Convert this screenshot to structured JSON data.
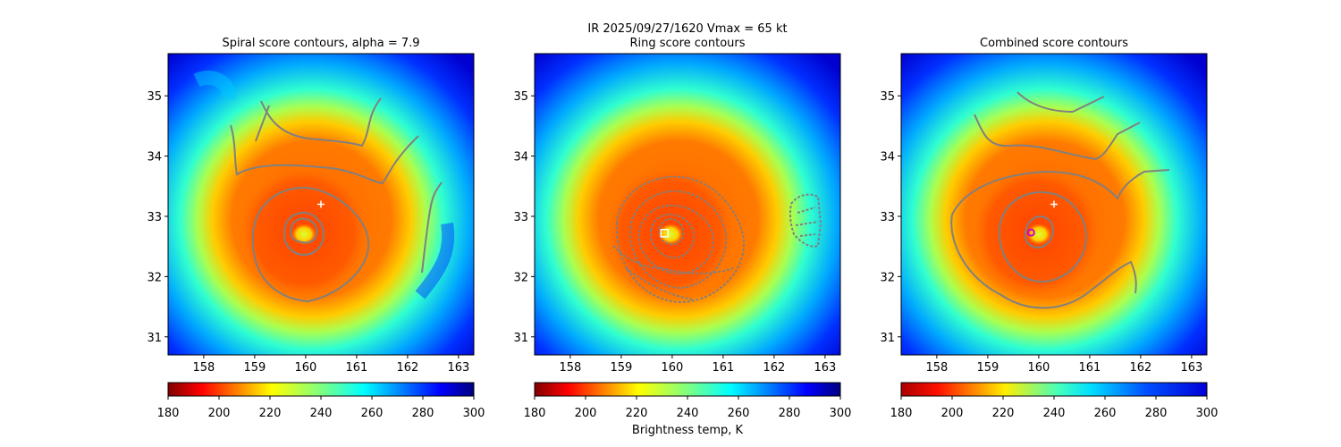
{
  "figure": {
    "suptitle_line1": "IR  2025/09/27/1620    Vmax = 65 kt",
    "colorbar_label": "Brightness temp, K"
  },
  "chart_data": [
    {
      "type": "heatmap",
      "title": "Spiral score contours, alpha =  7.9",
      "xlim": [
        157.3,
        163.3
      ],
      "ylim": [
        30.7,
        35.7
      ],
      "xticks": [
        158,
        159,
        160,
        161,
        162,
        163
      ],
      "yticks": [
        31,
        32,
        33,
        34,
        35
      ],
      "colorbar": {
        "min": 180,
        "max": 300,
        "ticks": [
          180,
          200,
          220,
          240,
          260,
          280,
          300
        ]
      },
      "markers": [
        {
          "kind": "plus",
          "lon": 160.3,
          "lat": 33.2,
          "color": "#ffffff"
        }
      ]
    },
    {
      "type": "heatmap",
      "title": "Ring score contours",
      "xlim": [
        157.3,
        163.3
      ],
      "ylim": [
        30.7,
        35.7
      ],
      "xticks": [
        158,
        159,
        160,
        161,
        162,
        163
      ],
      "yticks": [
        31,
        32,
        33,
        34,
        35
      ],
      "colorbar": {
        "min": 180,
        "max": 300,
        "ticks": [
          180,
          200,
          220,
          240,
          260,
          280,
          300
        ]
      },
      "markers": [
        {
          "kind": "square",
          "lon": 159.85,
          "lat": 32.72,
          "color": "#ffffff"
        }
      ]
    },
    {
      "type": "heatmap",
      "title": "Combined score contours",
      "xlim": [
        157.3,
        163.3
      ],
      "ylim": [
        30.7,
        35.7
      ],
      "xticks": [
        158,
        159,
        160,
        161,
        162,
        163
      ],
      "yticks": [
        31,
        32,
        33,
        34,
        35
      ],
      "colorbar": {
        "min": 180,
        "max": 300,
        "ticks": [
          180,
          200,
          220,
          240,
          260,
          280,
          300
        ]
      },
      "markers": [
        {
          "kind": "plus",
          "lon": 160.3,
          "lat": 33.2,
          "color": "#ffffff"
        },
        {
          "kind": "circle",
          "lon": 159.85,
          "lat": 32.73,
          "color": "#cc00cc"
        }
      ]
    }
  ]
}
